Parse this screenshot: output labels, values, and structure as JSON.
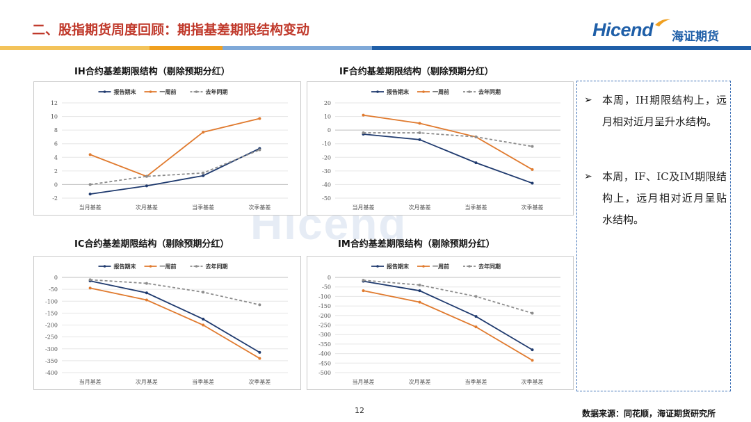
{
  "header": {
    "title": "二、股指期货周度回顾：期指基差期限结构变动",
    "logo_text": "Hicend",
    "logo_cn": "海证期货"
  },
  "colors": {
    "report_end": "#1f3a6e",
    "week_ago": "#e07a2e",
    "last_year": "#8c8c8c",
    "title_red": "#c0392b",
    "accent_blue": "#3b6fb6"
  },
  "chart_data": [
    {
      "type": "line",
      "title": "IH合约基差期限结构（剔除预期分红）",
      "categories": [
        "当月基差",
        "次月基差",
        "当季基差",
        "次季基差"
      ],
      "ylim": [
        -2,
        12
      ],
      "yticks": [
        -2,
        0,
        2,
        4,
        6,
        8,
        10,
        12
      ],
      "legend_position": "top",
      "series": [
        {
          "name": "报告期末",
          "values": [
            -1.4,
            -0.2,
            1.3,
            5.3
          ]
        },
        {
          "name": "一周前",
          "values": [
            4.4,
            1.2,
            7.7,
            9.7
          ]
        },
        {
          "name": "去年同期",
          "values": [
            0,
            1.2,
            1.7,
            5.1
          ]
        }
      ]
    },
    {
      "type": "line",
      "title": "IF合约基差期限结构（剔除预期分红）",
      "categories": [
        "当月基差",
        "次月基差",
        "当季基差",
        "次季基差"
      ],
      "ylim": [
        -50,
        20
      ],
      "yticks": [
        -50,
        -40,
        -30,
        -20,
        -10,
        0,
        10,
        20
      ],
      "legend_position": "top",
      "series": [
        {
          "name": "报告期末",
          "values": [
            -3,
            -7,
            -24,
            -39
          ]
        },
        {
          "name": "一周前",
          "values": [
            11,
            5,
            -5,
            -29
          ]
        },
        {
          "name": "去年同期",
          "values": [
            -2,
            -2,
            -5,
            -12
          ]
        }
      ]
    },
    {
      "type": "line",
      "title": "IC合约基差期限结构（剔除预期分红）",
      "categories": [
        "当月基差",
        "次月基差",
        "当季基差",
        "次季基差"
      ],
      "ylim": [
        -400,
        0
      ],
      "yticks": [
        -400,
        -350,
        -300,
        -250,
        -200,
        -150,
        -100,
        -50,
        0
      ],
      "legend_position": "top",
      "series": [
        {
          "name": "报告期末",
          "values": [
            -15,
            -65,
            -175,
            -315
          ]
        },
        {
          "name": "一周前",
          "values": [
            -45,
            -95,
            -200,
            -340
          ]
        },
        {
          "name": "去年同期",
          "values": [
            -10,
            -25,
            -62,
            -115
          ]
        }
      ]
    },
    {
      "type": "line",
      "title": "IM合约基差期限结构（剔除预期分红）",
      "categories": [
        "当月基差",
        "次月基差",
        "当季基差",
        "次季基差"
      ],
      "ylim": [
        -500,
        0
      ],
      "yticks": [
        -500,
        -450,
        -400,
        -350,
        -300,
        -250,
        -200,
        -150,
        -100,
        -50,
        0
      ],
      "legend_position": "top",
      "series": [
        {
          "name": "报告期末",
          "values": [
            -20,
            -70,
            -205,
            -380
          ]
        },
        {
          "name": "一周前",
          "values": [
            -70,
            -130,
            -260,
            -435
          ]
        },
        {
          "name": "去年同期",
          "values": [
            -15,
            -40,
            -100,
            -188
          ]
        }
      ]
    }
  ],
  "notes": [
    {
      "bullet": "➢",
      "text": "本周，IH期限结构上，远月相对近月呈升水结构。"
    },
    {
      "bullet": "➢",
      "text": "本周，IF、IC及IM期限结构上，远月相对近月呈贴水结构。"
    }
  ],
  "footer": {
    "page_number": "12",
    "source": "数据来源：同花顺，海证期货研究所"
  }
}
